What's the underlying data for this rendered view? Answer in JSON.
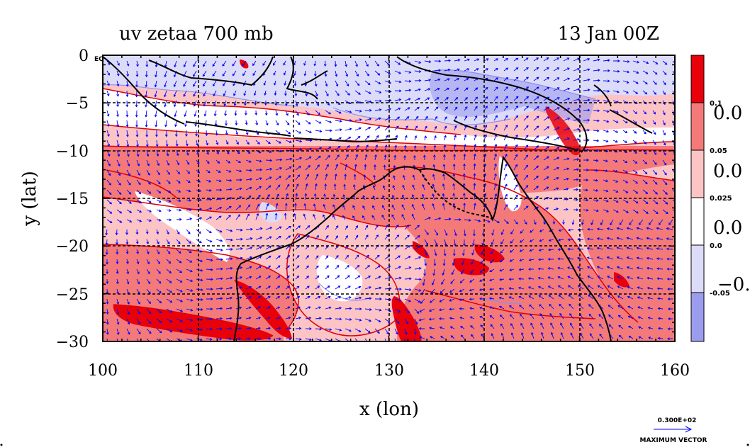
{
  "chart_data": {
    "type": "heatmap",
    "title_left": "uv zetaa 700 mb",
    "title_right": "13 Jan 00Z",
    "xlabel": "x (lon)",
    "ylabel": "y (lat)",
    "xlim": [
      100,
      160
    ],
    "ylim": [
      -30,
      0
    ],
    "x_ticks": [
      "100",
      "110",
      "120",
      "130",
      "140",
      "150",
      "160"
    ],
    "y_ticks": [
      "0",
      "−5",
      "−10",
      "−15",
      "−20",
      "−25",
      "−30"
    ],
    "y_tick_values": [
      0,
      -5,
      -10,
      -15,
      -20,
      -25,
      -30
    ],
    "x_tick_values": [
      100,
      110,
      120,
      130,
      140,
      150,
      160
    ],
    "y_top_annotation": "EQ",
    "grid": true,
    "colorbar": {
      "levels": [
        "0.1",
        "0.05",
        "0.025",
        "0.0",
        "-0.05"
      ],
      "colors": [
        "#e8000b",
        "#f47a7a",
        "#fcc4c4",
        "#ffffff",
        "#dcdcf8",
        "#9c9cee"
      ],
      "overlay_labels": [
        "0.0",
        "0.0",
        "0.0",
        "−0."
      ]
    },
    "vector_legend": {
      "value": "0.300E+02",
      "label": "MAXIMUM VECTOR"
    },
    "colors": {
      "strong_red": "#e8000b",
      "mid_red": "#f47a7a",
      "light_red": "#fcc4c4",
      "white": "#ffffff",
      "light_blue": "#dcdcf8",
      "mid_blue": "#9c9cee",
      "contour_red": "#e00000",
      "contour_blue": "#8f8fe8",
      "vector_blue": "#0000ff",
      "coast": "#000000"
    }
  }
}
